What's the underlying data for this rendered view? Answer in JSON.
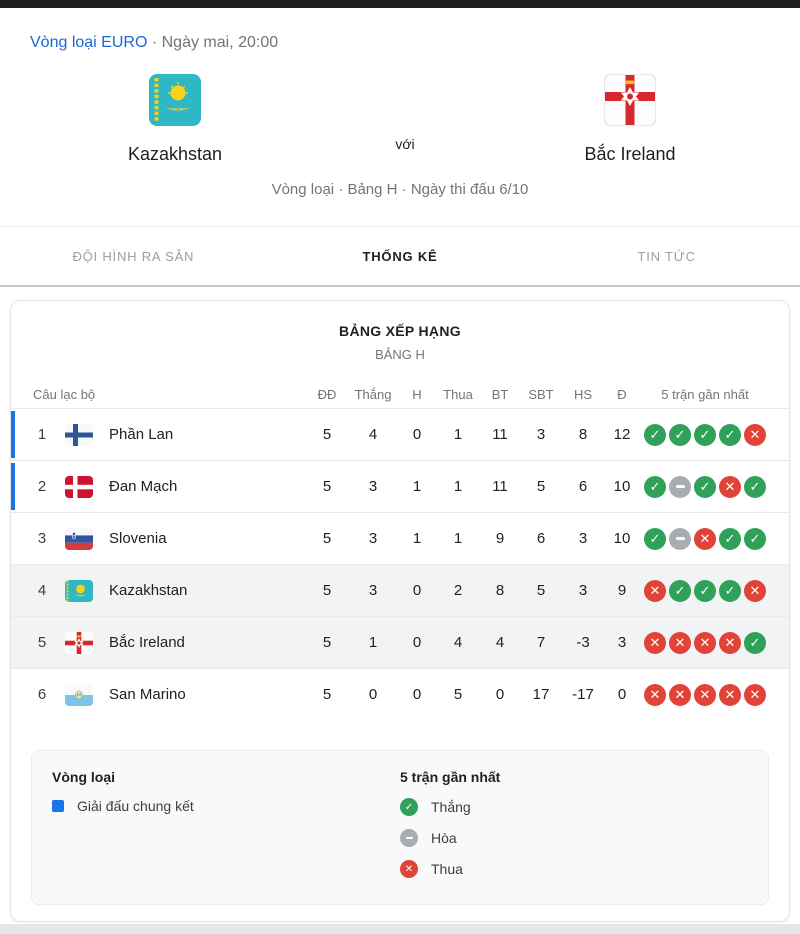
{
  "header": {
    "competition": "Vòng loại EURO",
    "separator": " · ",
    "kickoff": "Ngày mai, 20:00",
    "home": {
      "name": "Kazakhstan",
      "flag": "kazakhstan"
    },
    "versus": "với",
    "away": {
      "name": "Bắc Ireland",
      "flag": "northern-ireland"
    },
    "context": "Vòng loại · Bảng H · Ngày thi đấu 6/10"
  },
  "tabs": [
    {
      "label": "ĐỘI HÌNH RA SÂN",
      "active": false
    },
    {
      "label": "THỐNG KÊ",
      "active": true
    },
    {
      "label": "TIN TỨC",
      "active": false
    }
  ],
  "standings": {
    "title": "BẢNG XẾP HẠNG",
    "subtitle": "BẢNG H",
    "columns": {
      "club": "Câu lạc bộ",
      "played": "ĐĐ",
      "won": "Thắng",
      "draw": "H",
      "lost": "Thua",
      "gf": "BT",
      "ga": "SBT",
      "gd": "HS",
      "points": "Đ",
      "form": "5 trận gần nhất"
    },
    "rows": [
      {
        "rank": 1,
        "team": "Phần Lan",
        "flag": "finland",
        "played": 5,
        "won": 4,
        "draw": 0,
        "lost": 1,
        "gf": 11,
        "ga": 3,
        "gd": 8,
        "points": 12,
        "form": [
          "W",
          "W",
          "W",
          "W",
          "L"
        ],
        "qualified": true,
        "highlighted": false
      },
      {
        "rank": 2,
        "team": "Đan Mạch",
        "flag": "denmark",
        "played": 5,
        "won": 3,
        "draw": 1,
        "lost": 1,
        "gf": 11,
        "ga": 5,
        "gd": 6,
        "points": 10,
        "form": [
          "W",
          "D",
          "W",
          "L",
          "W"
        ],
        "qualified": true,
        "highlighted": false
      },
      {
        "rank": 3,
        "team": "Slovenia",
        "flag": "slovenia",
        "played": 5,
        "won": 3,
        "draw": 1,
        "lost": 1,
        "gf": 9,
        "ga": 6,
        "gd": 3,
        "points": 10,
        "form": [
          "W",
          "D",
          "L",
          "W",
          "W"
        ],
        "qualified": false,
        "highlighted": false
      },
      {
        "rank": 4,
        "team": "Kazakhstan",
        "flag": "kazakhstan",
        "played": 5,
        "won": 3,
        "draw": 0,
        "lost": 2,
        "gf": 8,
        "ga": 5,
        "gd": 3,
        "points": 9,
        "form": [
          "L",
          "W",
          "W",
          "W",
          "L"
        ],
        "qualified": false,
        "highlighted": true
      },
      {
        "rank": 5,
        "team": "Bắc Ireland",
        "flag": "northern-ireland",
        "played": 5,
        "won": 1,
        "draw": 0,
        "lost": 4,
        "gf": 4,
        "ga": 7,
        "gd": -3,
        "points": 3,
        "form": [
          "L",
          "L",
          "L",
          "L",
          "W"
        ],
        "qualified": false,
        "highlighted": true
      },
      {
        "rank": 6,
        "team": "San Marino",
        "flag": "san-marino",
        "played": 5,
        "won": 0,
        "draw": 0,
        "lost": 5,
        "gf": 0,
        "ga": 17,
        "gd": -17,
        "points": 0,
        "form": [
          "L",
          "L",
          "L",
          "L",
          "L"
        ],
        "qualified": false,
        "highlighted": false
      }
    ]
  },
  "legend": {
    "qualification": {
      "title": "Vòng loại",
      "items": [
        {
          "label": "Giải đấu chung kết",
          "marker": "blue-square"
        }
      ]
    },
    "form": {
      "title": "5 trận gần nhất",
      "items": [
        {
          "label": "Thắng",
          "marker": "win"
        },
        {
          "label": "Hòa",
          "marker": "draw"
        },
        {
          "label": "Thua",
          "marker": "loss"
        }
      ]
    }
  },
  "colors": {
    "accent_blue": "#1a73e8",
    "link_blue": "#1967d2",
    "win_green": "#30a158",
    "loss_red": "#e04438",
    "draw_gray": "#a9adb0",
    "highlight_row": "#f1f3f4",
    "topbar": "#1e1e1e"
  }
}
